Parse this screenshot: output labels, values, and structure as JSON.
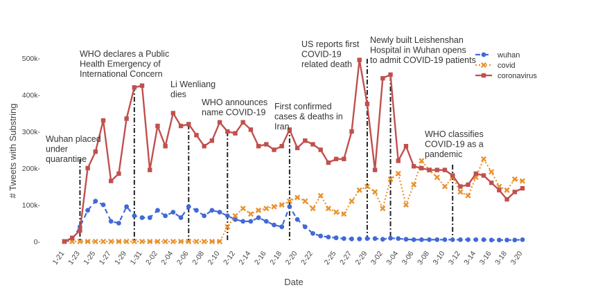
{
  "chart_data": {
    "type": "line",
    "xlabel": "Date",
    "ylabel": "# Tweets with Substring",
    "ylim": [
      0,
      500000
    ],
    "y_ticks": [
      {
        "value": 0,
        "label": "0-"
      },
      {
        "value": 100000,
        "label": "100k-"
      },
      {
        "value": 200000,
        "label": "200k-"
      },
      {
        "value": 300000,
        "label": "300k-"
      },
      {
        "value": 400000,
        "label": "400k-"
      },
      {
        "value": 500000,
        "label": "500k-"
      }
    ],
    "x_dates": [
      "1-21",
      "1-22",
      "1-23",
      "1-24",
      "1-25",
      "1-26",
      "1-27",
      "1-28",
      "1-29",
      "1-30",
      "1-31",
      "2-01",
      "2-02",
      "2-03",
      "2-04",
      "2-05",
      "2-06",
      "2-07",
      "2-08",
      "2-09",
      "2-10",
      "2-11",
      "2-12",
      "2-13",
      "2-14",
      "2-15",
      "2-16",
      "2-17",
      "2-18",
      "2-19",
      "2-20",
      "2-21",
      "2-22",
      "2-23",
      "2-24",
      "2-25",
      "2-26",
      "2-27",
      "2-28",
      "2-29",
      "3-01",
      "3-02",
      "3-03",
      "3-04",
      "3-05",
      "3-06",
      "3-07",
      "3-08",
      "3-09",
      "3-10",
      "3-11",
      "3-12",
      "3-13",
      "3-14",
      "3-15",
      "3-16",
      "3-17",
      "3-18",
      "3-19",
      "3-20"
    ],
    "x_tick_labels": [
      "1-21",
      "1-23",
      "1-25",
      "1-27",
      "1-29",
      "1-31",
      "2-02",
      "2-04",
      "2-06",
      "2-08",
      "2-10",
      "2-12",
      "2-14",
      "2-16",
      "2-18",
      "2-20",
      "2-22",
      "2-25",
      "2-27",
      "2-29",
      "3-02",
      "3-04",
      "3-06",
      "3-08",
      "3-10",
      "3-12",
      "3-14",
      "3-16",
      "3-18",
      "3-20"
    ],
    "series": [
      {
        "name": "wuhan",
        "color": "#4169d6",
        "dash": "dash",
        "marker": "circle",
        "values": [
          0,
          5000,
          40000,
          85000,
          110000,
          100000,
          55000,
          50000,
          95000,
          70000,
          65000,
          65000,
          85000,
          70000,
          80000,
          65000,
          95000,
          85000,
          70000,
          85000,
          80000,
          70000,
          60000,
          55000,
          55000,
          65000,
          55000,
          45000,
          40000,
          95000,
          60000,
          40000,
          22000,
          15000,
          12000,
          10000,
          8000,
          7000,
          7000,
          8000,
          8000,
          6000,
          9000,
          8000,
          6000,
          5000,
          5000,
          5000,
          5000,
          5000,
          5000,
          5000,
          5000,
          5000,
          5000,
          4000,
          4000,
          4000,
          4000,
          5000
        ]
      },
      {
        "name": "covid",
        "color": "#e8922e",
        "dash": "dot",
        "marker": "x",
        "values": [
          0,
          0,
          0,
          0,
          0,
          0,
          0,
          0,
          0,
          0,
          0,
          0,
          0,
          0,
          0,
          0,
          0,
          0,
          0,
          0,
          0,
          40000,
          70000,
          90000,
          75000,
          85000,
          90000,
          95000,
          100000,
          110000,
          120000,
          110000,
          90000,
          125000,
          90000,
          80000,
          75000,
          110000,
          140000,
          150000,
          135000,
          90000,
          170000,
          185000,
          100000,
          155000,
          220000,
          195000,
          175000,
          150000,
          175000,
          135000,
          125000,
          175000,
          225000,
          190000,
          150000,
          140000,
          170000,
          165000
        ]
      },
      {
        "name": "coronavirus",
        "color": "#c0504d",
        "dash": "solid",
        "marker": "square",
        "values": [
          0,
          10000,
          30000,
          200000,
          245000,
          330000,
          165000,
          185000,
          335000,
          420000,
          425000,
          195000,
          315000,
          260000,
          350000,
          315000,
          320000,
          290000,
          260000,
          275000,
          325000,
          300000,
          295000,
          325000,
          305000,
          260000,
          265000,
          250000,
          260000,
          305000,
          255000,
          275000,
          265000,
          250000,
          215000,
          225000,
          225000,
          300000,
          495000,
          375000,
          195000,
          445000,
          455000,
          220000,
          260000,
          205000,
          200000,
          195000,
          195000,
          195000,
          180000,
          150000,
          155000,
          185000,
          180000,
          160000,
          140000,
          115000,
          135000,
          145000
        ]
      }
    ],
    "annotations": [
      {
        "date": "1-23",
        "lines": [
          "Wuhan placed",
          "under",
          "quarantine"
        ]
      },
      {
        "date": "1-30",
        "lines": [
          "WHO declares a Public",
          "Health Emergency of",
          "International Concern"
        ]
      },
      {
        "date": "2-06",
        "lines": [
          "Li Wenliang",
          "dies"
        ]
      },
      {
        "date": "2-11",
        "lines": [
          "WHO announces",
          "name COVID-19"
        ]
      },
      {
        "date": "2-19",
        "lines": [
          "First confirmed",
          "cases & deaths in",
          "Iran"
        ]
      },
      {
        "date": "2-29",
        "lines": [
          "US reports first",
          "COVID-19",
          "related death"
        ]
      },
      {
        "date": "3-03",
        "lines": [
          "Newly built Leishenshan",
          "Hospital in Wuhan opens",
          "to admit COVID-19 patients"
        ]
      },
      {
        "date": "3-11",
        "lines": [
          "WHO classifies",
          "COVID-19 as a",
          "pandemic"
        ]
      }
    ],
    "grid": false,
    "legend_position": "top-right"
  }
}
